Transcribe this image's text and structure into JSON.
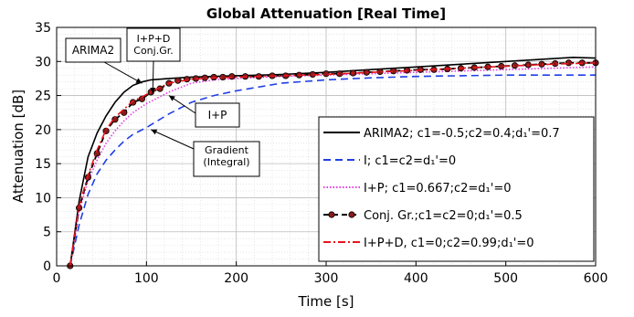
{
  "chart_data": {
    "type": "line",
    "title": "Global Attenuation [Real Time]",
    "xlabel": "Time [s]",
    "ylabel": "Attenuation [dB]",
    "xlim": [
      0,
      600
    ],
    "ylim": [
      0,
      35
    ],
    "xticks": [
      0,
      100,
      200,
      300,
      400,
      500,
      600
    ],
    "yticks": [
      0,
      5,
      10,
      15,
      20,
      25,
      30,
      35
    ],
    "grid": true,
    "legend_position": "lower-right",
    "series": [
      {
        "id": "arima2",
        "name": "ARIMA2; c1=-0.5;c2=0.4;d₁'=0.7",
        "color": "#000000",
        "style": "solid",
        "x": [
          15,
          25,
          35,
          45,
          55,
          65,
          75,
          85,
          95,
          105,
          115,
          125,
          150,
          175,
          200,
          250,
          300,
          350,
          400,
          450,
          500,
          550,
          575,
          600
        ],
        "y": [
          0,
          9.5,
          16,
          19.5,
          22,
          24,
          25.5,
          26.5,
          27,
          27.3,
          27.4,
          27.5,
          27.7,
          27.8,
          27.9,
          28.1,
          28.4,
          28.8,
          29.2,
          29.6,
          30.0,
          30.4,
          30.6,
          30.5
        ]
      },
      {
        "id": "integral",
        "name": "I; c1=c2=d₁'=0",
        "color": "#1f3fe6",
        "style": "dashed",
        "x": [
          15,
          25,
          35,
          45,
          55,
          65,
          75,
          85,
          100,
          125,
          150,
          175,
          200,
          250,
          300,
          350,
          400,
          450,
          500,
          550,
          600
        ],
        "y": [
          0,
          6,
          10.5,
          13.5,
          15.5,
          17,
          18.3,
          19.3,
          20.3,
          22.3,
          24,
          25,
          25.7,
          26.8,
          27.3,
          27.6,
          27.8,
          27.9,
          28.0,
          28.0,
          28.0
        ]
      },
      {
        "id": "ip",
        "name": "I+P; c1=0.667;c2=d₁'=0",
        "color": "#e63ae6",
        "style": "dotted",
        "x": [
          15,
          25,
          35,
          45,
          55,
          65,
          75,
          85,
          100,
          125,
          150,
          175,
          200,
          250,
          300,
          350,
          400,
          450,
          500,
          550,
          600
        ],
        "y": [
          0,
          8,
          12.5,
          15.5,
          18,
          19.8,
          21.3,
          22.5,
          23.8,
          25.5,
          26.8,
          27.3,
          27.5,
          27.8,
          28.0,
          28.2,
          28.4,
          28.6,
          28.8,
          29.0,
          29.2
        ]
      },
      {
        "id": "conjgr",
        "name": "Conj. Gr.;c1=c2=0;d₁'=0.5",
        "color": "#000000",
        "style": "dashed-markers",
        "x": [
          15,
          25,
          35,
          45,
          55,
          65,
          75,
          85,
          95,
          105,
          115,
          125,
          135,
          145,
          155,
          165,
          175,
          185,
          195,
          210,
          225,
          240,
          255,
          270,
          285,
          300,
          315,
          330,
          345,
          360,
          375,
          390,
          405,
          420,
          435,
          450,
          465,
          480,
          495,
          510,
          525,
          540,
          555,
          570,
          585,
          600
        ],
        "y": [
          0,
          8.5,
          13,
          16.5,
          19.8,
          21.5,
          22.5,
          24,
          24.5,
          25.5,
          26,
          26.8,
          27.2,
          27.4,
          27.5,
          27.6,
          27.7,
          27.7,
          27.8,
          27.8,
          27.8,
          27.9,
          27.9,
          28.0,
          28.1,
          28.2,
          28.2,
          28.3,
          28.4,
          28.5,
          28.6,
          28.7,
          28.8,
          28.8,
          28.9,
          29.0,
          29.1,
          29.2,
          29.3,
          29.4,
          29.5,
          29.6,
          29.7,
          29.8,
          29.8,
          29.8
        ]
      },
      {
        "id": "ipd",
        "name": "I+P+D, c1=0;c2=0.99;d₁'=0",
        "color": "#e6141e",
        "style": "dashdot",
        "x": [
          15,
          25,
          35,
          45,
          55,
          65,
          75,
          85,
          95,
          105,
          115,
          125,
          150,
          175,
          200,
          250,
          300,
          350,
          400,
          450,
          500,
          550,
          600
        ],
        "y": [
          0,
          8.8,
          13.3,
          17,
          20,
          21.8,
          23,
          24.2,
          24.8,
          25.5,
          26.2,
          26.8,
          27.4,
          27.6,
          27.7,
          27.9,
          28.1,
          28.4,
          28.7,
          29.0,
          29.3,
          29.6,
          29.8
        ]
      }
    ],
    "annotations": [
      {
        "id": "ann-arima",
        "lines": [
          "ARIMA2"
        ],
        "arrow_to": [
          95,
          26.8
        ]
      },
      {
        "id": "ann-ipd",
        "lines": [
          "I+P+D",
          "Conj.Gr."
        ],
        "arrow_to": [
          107,
          25.3
        ]
      },
      {
        "id": "ann-ip",
        "lines": [
          "I+P"
        ],
        "arrow_to": [
          125,
          25.0
        ]
      },
      {
        "id": "ann-grad",
        "lines": [
          "Gradient",
          "(Integral)"
        ],
        "arrow_to": [
          105,
          20.0
        ]
      }
    ]
  }
}
